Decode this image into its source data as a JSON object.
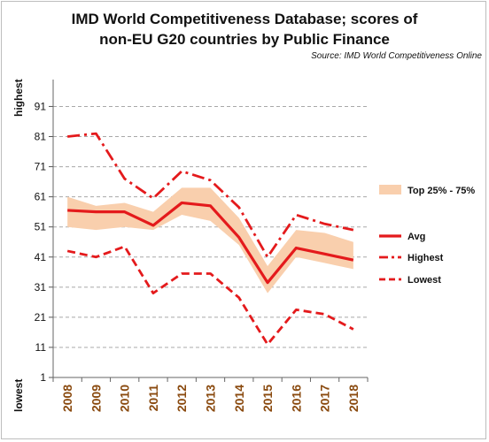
{
  "chart_data": {
    "type": "line",
    "title_lines": [
      "IMD World Competitiveness Database; scores of",
      "non-EU G20 countries by Public Finance"
    ],
    "source": "Source: IMD World Competitiveness Online",
    "y_high_label": "highest",
    "y_low_label": "lowest",
    "x": [
      "2008",
      "2009",
      "2010",
      "2011",
      "2012",
      "2013",
      "2014",
      "2015",
      "2016",
      "2017",
      "2018"
    ],
    "ylim": [
      1,
      97
    ],
    "yticks": [
      1,
      11,
      21,
      31,
      41,
      51,
      61,
      71,
      81,
      91
    ],
    "grid": true,
    "legend_position": "right",
    "band": {
      "name": "Top 25% - 75%",
      "upper": [
        61,
        58,
        59,
        56,
        64,
        64,
        54,
        38,
        50,
        49,
        46
      ],
      "lower": [
        51,
        50,
        51,
        50,
        55,
        53,
        45,
        29,
        41,
        39,
        37
      ],
      "color": "#f9cfad"
    },
    "series": [
      {
        "name": "Avg",
        "style": "solid",
        "color": "#e41a1c",
        "values": [
          56.5,
          56,
          56,
          51.5,
          59,
          58,
          47.5,
          32.5,
          44,
          42,
          40
        ]
      },
      {
        "name": "Highest",
        "style": "dashdot",
        "color": "#e41a1c",
        "values": [
          81,
          82,
          67,
          60.5,
          69.5,
          66.5,
          57.5,
          41,
          55,
          52,
          50
        ]
      },
      {
        "name": "Lowest",
        "style": "dashed",
        "color": "#e41a1c",
        "values": [
          43,
          41,
          44.5,
          29,
          35.5,
          35.5,
          27.5,
          12,
          23.5,
          22,
          17
        ]
      }
    ],
    "legend_labels": [
      "Top 25% - 75%",
      "Avg",
      "Highest",
      "Lowest"
    ]
  }
}
